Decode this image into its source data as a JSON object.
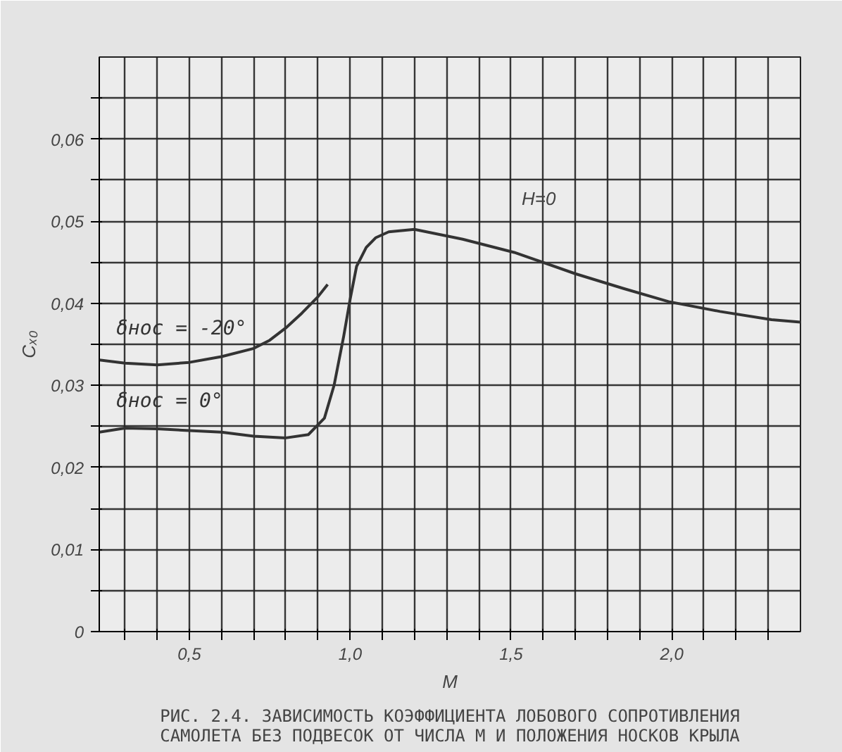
{
  "chart_data": {
    "type": "line",
    "title": "РИС. 2.4. ЗАВИСИМОСТЬ КОЭФФИЦИЕНТА ЛОБОВОГО СОПРОТИВЛЕНИЯ САМОЛЕТА БЕЗ ПОДВЕСОК ОТ ЧИСЛА M И ПОЛОЖЕНИЯ НОСКОВ КРЫЛА",
    "xlabel": "M",
    "ylabel": "Cₓ₀",
    "series": [
      {
        "name": "δнос = -20°",
        "color": "#333333",
        "x": [
          0.22,
          0.3,
          0.4,
          0.5,
          0.6,
          0.7,
          0.75,
          0.8,
          0.85,
          0.9,
          0.93
        ],
        "values": [
          0.0331,
          0.0327,
          0.0325,
          0.0328,
          0.0335,
          0.0345,
          0.0355,
          0.037,
          0.0388,
          0.0408,
          0.0423
        ]
      },
      {
        "name": "δнос = 0°",
        "color": "#333333",
        "x": [
          0.22,
          0.3,
          0.4,
          0.5,
          0.6,
          0.7,
          0.8,
          0.87,
          0.92,
          0.95,
          0.98,
          1.0,
          1.02,
          1.05,
          1.08,
          1.12,
          1.2,
          1.35,
          1.51,
          1.7,
          1.85,
          1.99,
          2.15,
          2.31,
          2.4
        ],
        "values": [
          0.0243,
          0.0248,
          0.0247,
          0.0245,
          0.0243,
          0.0238,
          0.0236,
          0.024,
          0.026,
          0.03,
          0.036,
          0.0405,
          0.0445,
          0.0468,
          0.048,
          0.0487,
          0.049,
          0.0478,
          0.0462,
          0.0436,
          0.0418,
          0.0402,
          0.039,
          0.038,
          0.0377
        ]
      }
    ],
    "annotations": [
      "H=0"
    ],
    "xlim": [
      0.22,
      2.4
    ],
    "ylim": [
      0,
      0.07
    ],
    "xticks": [
      {
        "value": 0.3,
        "label": null
      },
      {
        "value": 0.4,
        "label": null
      },
      {
        "value": 0.5,
        "label": "0,5"
      },
      {
        "value": 0.6,
        "label": null
      },
      {
        "value": 0.7,
        "label": null
      },
      {
        "value": 0.8,
        "label": null
      },
      {
        "value": 0.9,
        "label": null
      },
      {
        "value": 1.0,
        "label": "1,0"
      },
      {
        "value": 1.1,
        "label": null
      },
      {
        "value": 1.2,
        "label": null
      },
      {
        "value": 1.3,
        "label": null
      },
      {
        "value": 1.4,
        "label": null
      },
      {
        "value": 1.5,
        "label": "1,5"
      },
      {
        "value": 1.6,
        "label": null
      },
      {
        "value": 1.7,
        "label": null
      },
      {
        "value": 1.8,
        "label": null
      },
      {
        "value": 1.9,
        "label": null
      },
      {
        "value": 2.0,
        "label": "2,0"
      },
      {
        "value": 2.1,
        "label": null
      },
      {
        "value": 2.2,
        "label": null
      },
      {
        "value": 2.3,
        "label": null
      }
    ],
    "yticks": [
      0,
      {
        "value": 0.005,
        "label": null
      },
      {
        "value": 0.01,
        "label": "0,01"
      },
      {
        "value": 0.015,
        "label": null
      },
      {
        "value": 0.02,
        "label": "0,02"
      },
      {
        "value": 0.025,
        "label": null
      },
      {
        "value": 0.03,
        "label": "0,03"
      },
      {
        "value": 0.035,
        "label": null
      },
      {
        "value": 0.04,
        "label": "0,04"
      },
      {
        "value": 0.045,
        "label": null
      },
      {
        "value": 0.05,
        "label": "0,05"
      },
      {
        "value": 0.055,
        "label": null
      },
      {
        "value": 0.06,
        "label": "0,06"
      },
      {
        "value": 0.065,
        "label": null
      }
    ],
    "grid": true,
    "legend": false,
    "line_style": "solid",
    "marker": "none"
  }
}
